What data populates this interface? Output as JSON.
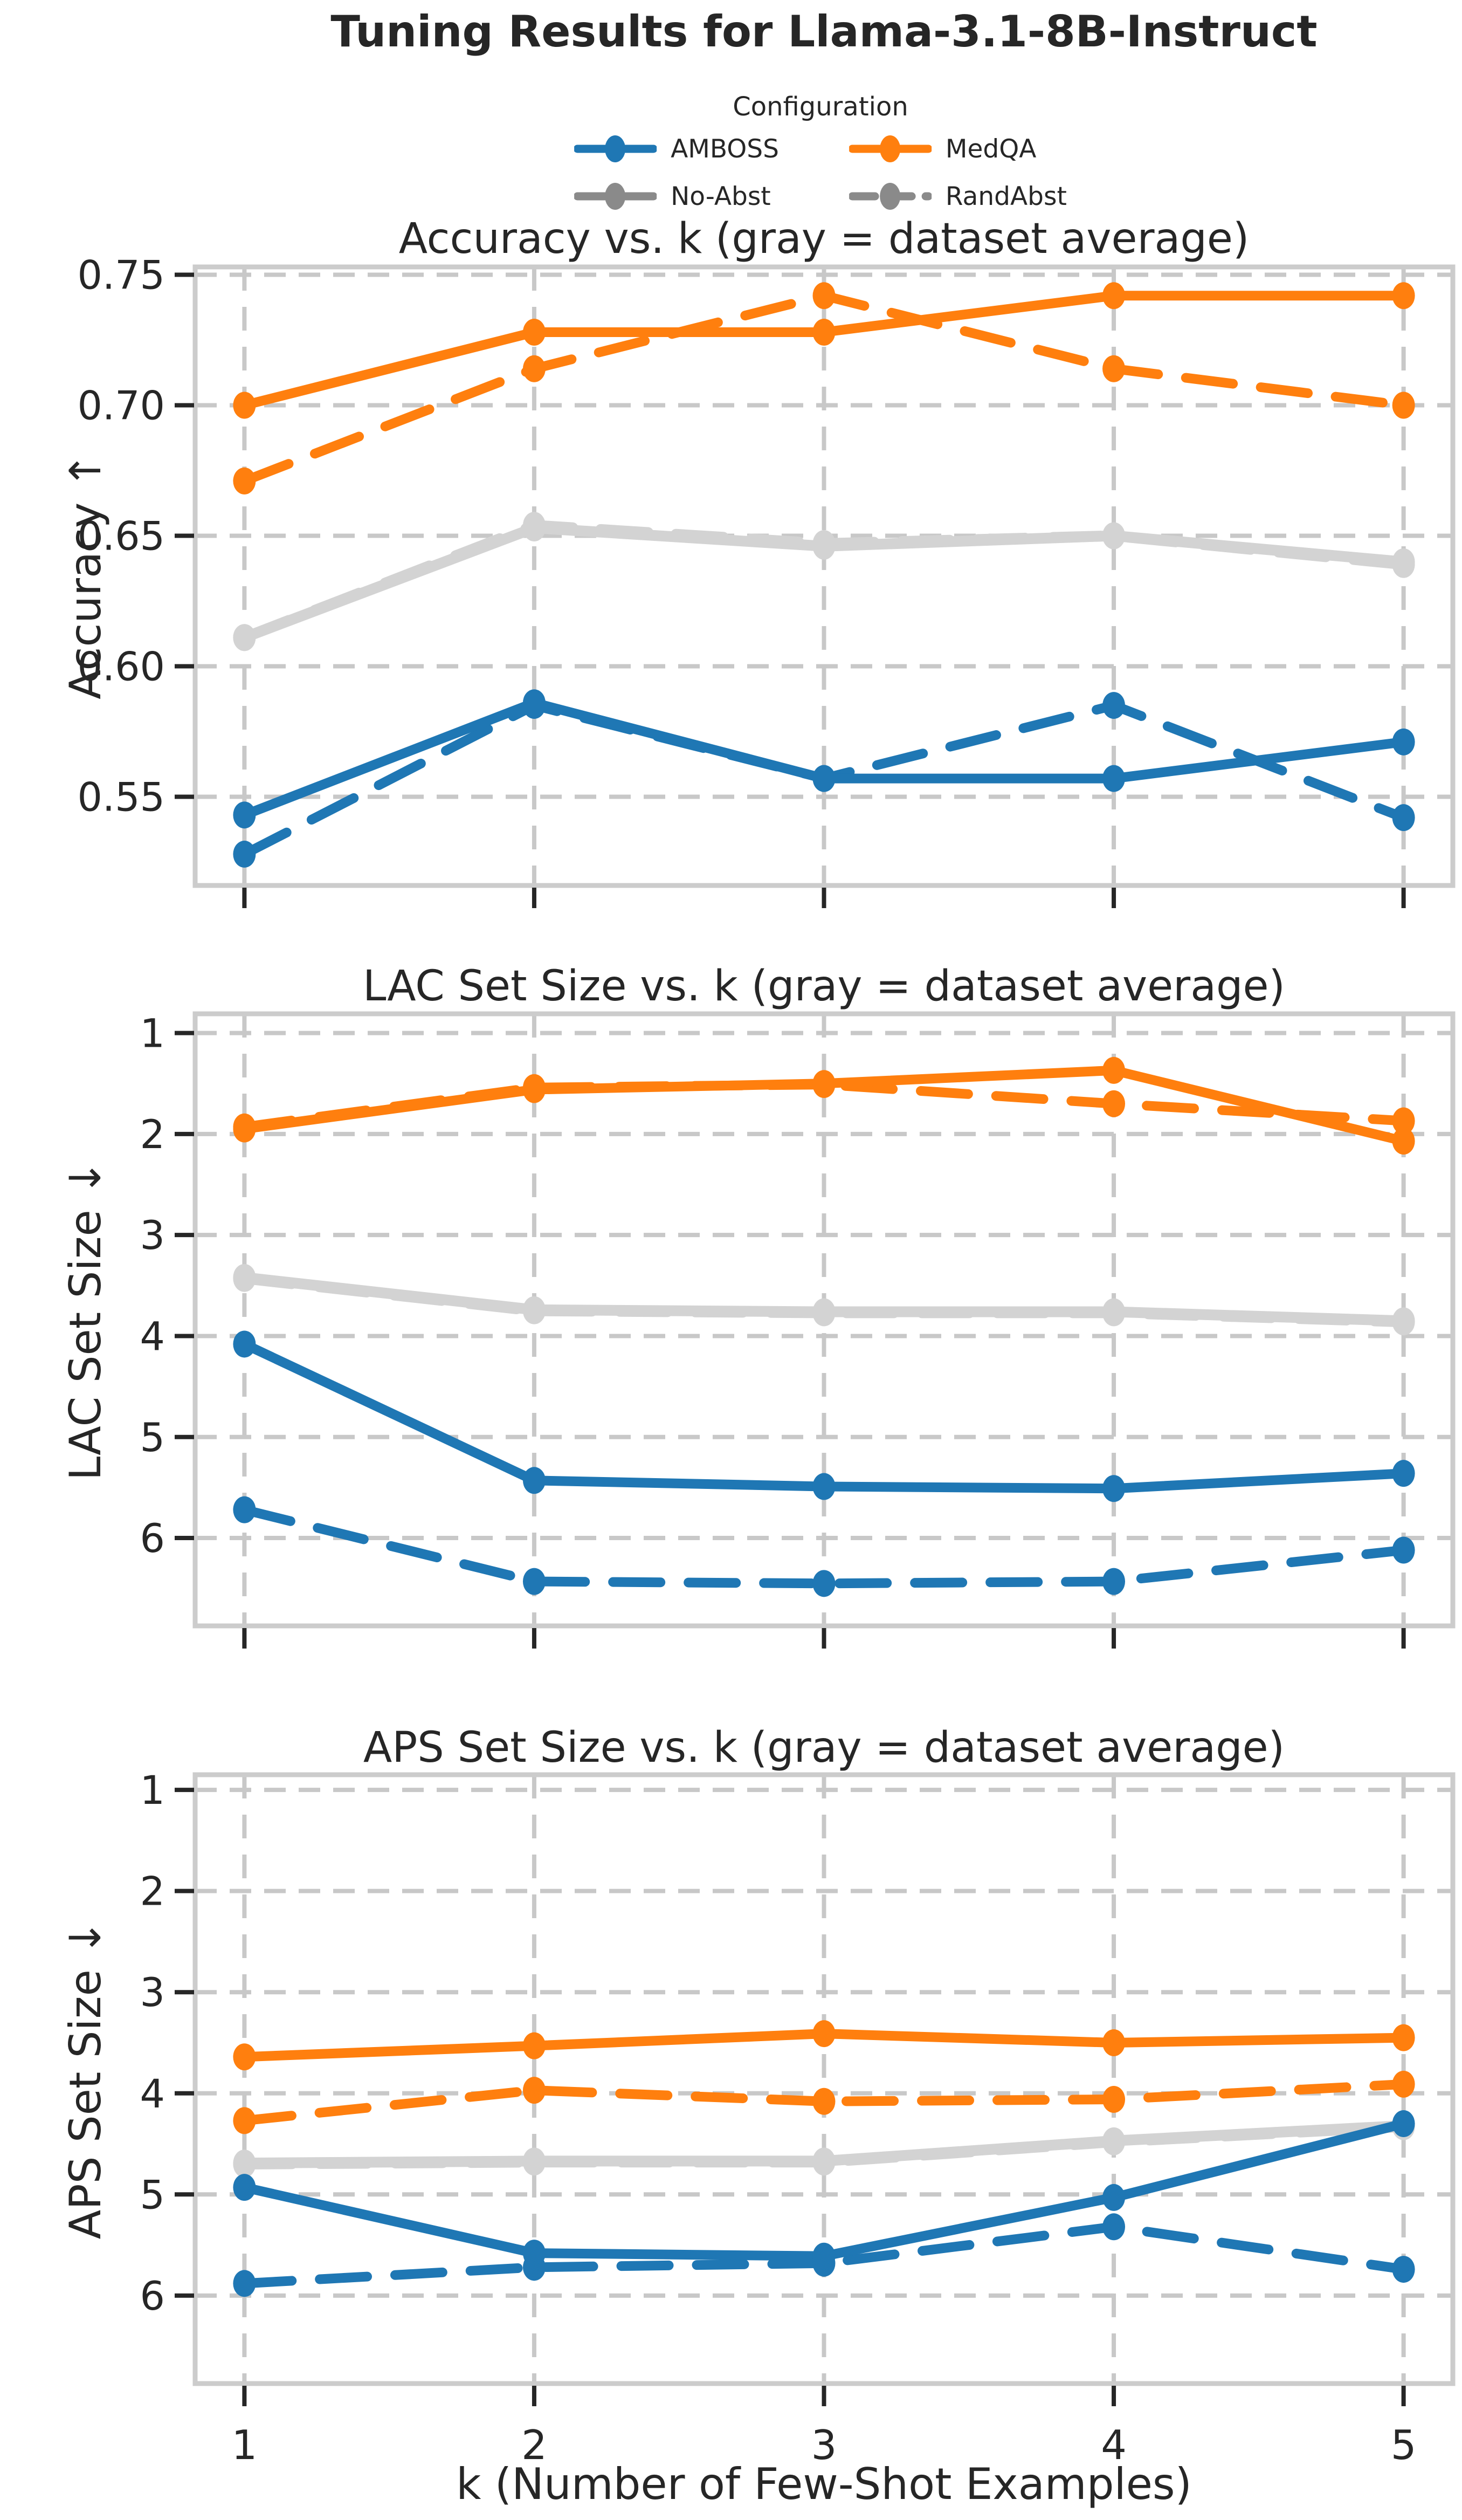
{
  "figure": {
    "suptitle": "Tuning Results for Llama-3.1-8B-Instruct",
    "xlabel": "k (Number of Few-Shot Examples)"
  },
  "legend": {
    "title": "Configuration",
    "entries": [
      {
        "id": "amboss",
        "label": "AMBOSS",
        "color": "#1f77b4",
        "dash": "solid"
      },
      {
        "id": "medqa",
        "label": "MedQA",
        "color": "#ff7f0e",
        "dash": "solid"
      },
      {
        "id": "no-abst",
        "label": "No-Abst",
        "color": "#8a8a8a",
        "dash": "solid"
      },
      {
        "id": "randabst",
        "label": "RandAbst",
        "color": "#8a8a8a",
        "dash": "dashed"
      }
    ]
  },
  "colors": {
    "amboss": "#1f77b4",
    "medqa": "#ff7f0e",
    "average": "#d3d3d3",
    "grid": "#c8c8c8",
    "spine": "#cccccc",
    "tick": "#262626",
    "text": "#262626"
  },
  "x_ticks": [
    1,
    2,
    3,
    4,
    5
  ],
  "chart_data": [
    {
      "type": "line",
      "title": "Accuracy vs. k (gray = dataset average)",
      "ylabel": "Accuracy ↑",
      "xlabel": "",
      "x": [
        1,
        2,
        3,
        4,
        5
      ],
      "xlim": [
        0.83,
        5.17
      ],
      "yticks": [
        0.55,
        0.6,
        0.65,
        0.7,
        0.75
      ],
      "ytick_decimals": 2,
      "ylim": [
        0.516,
        0.753
      ],
      "inverted": false,
      "grid": true,
      "legend_position": "top",
      "series": [
        {
          "name": "RandAbst average",
          "color": "average",
          "dash": "dashed",
          "values": [
            0.611,
            0.654,
            0.647,
            0.65,
            0.639
          ]
        },
        {
          "name": "No-Abst average",
          "color": "average",
          "dash": "solid",
          "values": [
            0.611,
            0.653,
            0.646,
            0.65,
            0.64
          ]
        },
        {
          "name": "AMBOSS RandAbst",
          "color": "amboss",
          "dash": "dashed",
          "values": [
            0.528,
            0.585,
            0.557,
            0.585,
            0.542
          ]
        },
        {
          "name": "MedQA RandAbst",
          "color": "medqa",
          "dash": "dashed",
          "values": [
            0.671,
            0.714,
            0.742,
            0.714,
            0.7
          ]
        },
        {
          "name": "AMBOSS No-Abst",
          "color": "amboss",
          "dash": "solid",
          "values": [
            0.543,
            0.586,
            0.557,
            0.557,
            0.571
          ]
        },
        {
          "name": "MedQA No-Abst",
          "color": "medqa",
          "dash": "solid",
          "values": [
            0.7,
            0.728,
            0.728,
            0.742,
            0.742
          ]
        }
      ]
    },
    {
      "type": "line",
      "title": "LAC Set Size vs. k (gray = dataset average)",
      "ylabel": "LAC Set Size ↓",
      "xlabel": "",
      "x": [
        1,
        2,
        3,
        4,
        5
      ],
      "xlim": [
        0.83,
        5.17
      ],
      "yticks": [
        1,
        2,
        3,
        4,
        5,
        6
      ],
      "ytick_decimals": 0,
      "ylim": [
        0.81,
        6.87
      ],
      "inverted": true,
      "grid": true,
      "legend_position": "top",
      "series": [
        {
          "name": "RandAbst average",
          "color": "average",
          "dash": "dashed",
          "values": [
            3.43,
            3.75,
            3.77,
            3.77,
            3.86
          ]
        },
        {
          "name": "No-Abst average",
          "color": "average",
          "dash": "solid",
          "values": [
            3.42,
            3.74,
            3.76,
            3.76,
            3.85
          ]
        },
        {
          "name": "AMBOSS RandAbst",
          "color": "amboss",
          "dash": "dashed",
          "values": [
            5.72,
            6.43,
            6.45,
            6.43,
            6.12
          ]
        },
        {
          "name": "MedQA RandAbst",
          "color": "medqa",
          "dash": "dashed",
          "values": [
            1.93,
            1.54,
            1.51,
            1.7,
            1.87
          ]
        },
        {
          "name": "AMBOSS No-Abst",
          "color": "amboss",
          "dash": "solid",
          "values": [
            4.08,
            5.43,
            5.49,
            5.51,
            5.36
          ]
        },
        {
          "name": "MedQA No-Abst",
          "color": "medqa",
          "dash": "solid",
          "values": [
            1.95,
            1.56,
            1.5,
            1.37,
            2.07
          ]
        }
      ]
    },
    {
      "type": "line",
      "title": "APS Set Size vs. k (gray = dataset average)",
      "ylabel": "APS Set Size ↓",
      "xlabel": "k (Number of Few-Shot Examples)",
      "x": [
        1,
        2,
        3,
        4,
        5
      ],
      "xlim": [
        0.83,
        5.17
      ],
      "yticks": [
        1,
        2,
        3,
        4,
        5,
        6
      ],
      "ytick_decimals": 0,
      "ylim": [
        0.85,
        6.87
      ],
      "inverted": true,
      "grid": true,
      "legend_position": "top",
      "series": [
        {
          "name": "RandAbst average",
          "color": "average",
          "dash": "dashed",
          "values": [
            4.7,
            4.68,
            4.68,
            4.48,
            4.33
          ]
        },
        {
          "name": "No-Abst average",
          "color": "average",
          "dash": "solid",
          "values": [
            4.69,
            4.67,
            4.67,
            4.47,
            4.32
          ]
        },
        {
          "name": "AMBOSS RandAbst",
          "color": "amboss",
          "dash": "dashed",
          "values": [
            5.88,
            5.72,
            5.68,
            5.32,
            5.74
          ]
        },
        {
          "name": "MedQA RandAbst",
          "color": "medqa",
          "dash": "dashed",
          "values": [
            4.27,
            3.97,
            4.08,
            4.06,
            3.91
          ]
        },
        {
          "name": "AMBOSS No-Abst",
          "color": "amboss",
          "dash": "solid",
          "values": [
            4.93,
            5.58,
            5.61,
            5.03,
            4.3
          ]
        },
        {
          "name": "MedQA No-Abst",
          "color": "medqa",
          "dash": "solid",
          "values": [
            3.64,
            3.53,
            3.41,
            3.5,
            3.45
          ]
        }
      ]
    }
  ]
}
